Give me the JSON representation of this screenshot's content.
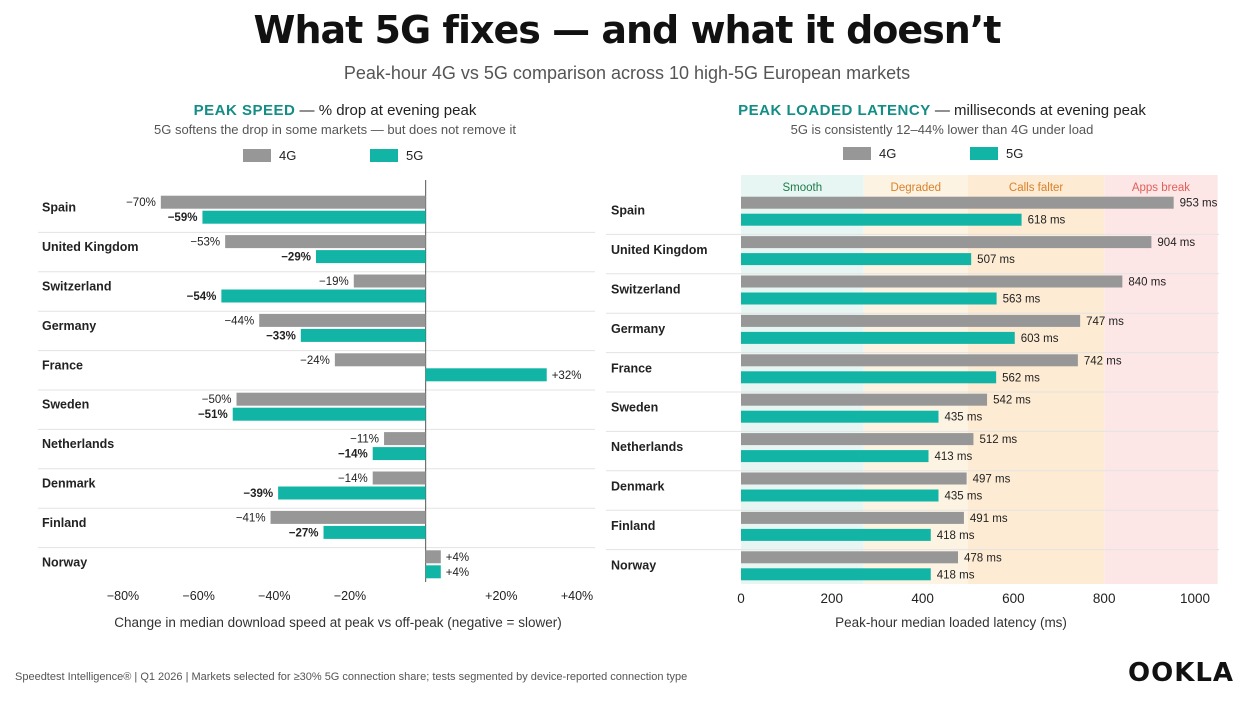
{
  "title": "What 5G fixes — and what it doesn’t",
  "subtitle": "Peak-hour 4G vs 5G comparison across 10 high-5G European markets",
  "footer": "Speedtest Intelligence®  |  Q1 2026  |  Markets selected for ≥30% 5G connection share; tests segmented by device-reported connection type",
  "logo": "OOKLA",
  "colors": {
    "4G": "#979797",
    "5G": "#12b5a5",
    "accent": "#138d86"
  },
  "chart_data": [
    {
      "type": "bar",
      "orientation": "horizontal",
      "title_highlight": "PEAK SPEED",
      "title_rest": " — % drop at evening peak",
      "subtitle": "5G softens the drop in some markets — but does not remove it",
      "xlabel": "Change in median download speed at peak vs off-peak  (negative = slower)",
      "xlim": [
        -80,
        40
      ],
      "xticks": [
        -80,
        -60,
        -40,
        -20,
        20,
        40
      ],
      "xtick_labels": [
        "−80%",
        "−60%",
        "−40%",
        "−20%",
        "+20%",
        "+40%"
      ],
      "legend": [
        "4G",
        "5G"
      ],
      "legend_position": "top",
      "categories": [
        "Spain",
        "United Kingdom",
        "Switzerland",
        "Germany",
        "France",
        "Sweden",
        "Netherlands",
        "Denmark",
        "Finland",
        "Norway"
      ],
      "series": [
        {
          "name": "4G",
          "values": [
            -70,
            -53,
            -19,
            -44,
            -24,
            -50,
            -11,
            -14,
            -41,
            4
          ],
          "labels": [
            "−70%",
            "−53%",
            "−19%",
            "−44%",
            "−24%",
            "−50%",
            "−11%",
            "−14%",
            "−41%",
            "+4%"
          ]
        },
        {
          "name": "5G",
          "values": [
            -59,
            -29,
            -54,
            -33,
            32,
            -51,
            -14,
            -39,
            -27,
            4
          ],
          "labels": [
            "−59%",
            "−29%",
            "−54%",
            "−33%",
            "+32%",
            "−51%",
            "−14%",
            "−39%",
            "−27%",
            "+4%"
          ]
        }
      ]
    },
    {
      "type": "bar",
      "orientation": "horizontal",
      "title_highlight": "PEAK LOADED LATENCY",
      "title_rest": " — milliseconds at evening peak",
      "subtitle": "5G is consistently 12–44% lower than 4G under load",
      "xlabel": "Peak-hour median loaded latency (ms)",
      "xlim": [
        0,
        1050
      ],
      "xticks": [
        0,
        200,
        400,
        600,
        800,
        1000
      ],
      "xtick_labels": [
        "0",
        "200",
        "400",
        "600",
        "800",
        "1000"
      ],
      "legend": [
        "4G",
        "5G"
      ],
      "legend_position": "top",
      "zones": [
        {
          "label": "Smooth",
          "from": 0,
          "to": 270,
          "fill": "#e8f6f3",
          "color": "#1f7a4a"
        },
        {
          "label": "Degraded",
          "from": 270,
          "to": 500,
          "fill": "#fdf3e2",
          "color": "#d9822b"
        },
        {
          "label": "Calls falter",
          "from": 500,
          "to": 800,
          "fill": "#fdebd3",
          "color": "#d9822b"
        },
        {
          "label": "Apps break",
          "from": 800,
          "to": 1050,
          "fill": "#fde6e6",
          "color": "#e0605a"
        }
      ],
      "categories": [
        "Spain",
        "United Kingdom",
        "Switzerland",
        "Germany",
        "France",
        "Sweden",
        "Netherlands",
        "Denmark",
        "Finland",
        "Norway"
      ],
      "series": [
        {
          "name": "4G",
          "values": [
            953,
            904,
            840,
            747,
            742,
            542,
            512,
            497,
            491,
            478
          ],
          "labels": [
            "953 ms",
            "904 ms",
            "840 ms",
            "747 ms",
            "742 ms",
            "542 ms",
            "512 ms",
            "497 ms",
            "491 ms",
            "478 ms"
          ]
        },
        {
          "name": "5G",
          "values": [
            618,
            507,
            563,
            603,
            562,
            435,
            413,
            435,
            418,
            418
          ],
          "labels": [
            "618 ms",
            "507 ms",
            "563 ms",
            "603 ms",
            "562 ms",
            "435 ms",
            "413 ms",
            "435 ms",
            "418 ms",
            "418 ms"
          ]
        }
      ]
    }
  ]
}
